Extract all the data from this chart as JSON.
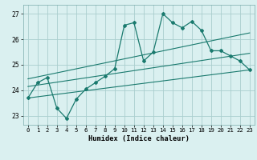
{
  "xlabel": "Humidex (Indice chaleur)",
  "bg_color": "#daf0f0",
  "grid_color": "#aacece",
  "line_color": "#1a7a6e",
  "xlim": [
    -0.5,
    23.5
  ],
  "ylim": [
    22.65,
    27.35
  ],
  "xticks": [
    0,
    1,
    2,
    3,
    4,
    5,
    6,
    7,
    8,
    9,
    10,
    11,
    12,
    13,
    14,
    15,
    16,
    17,
    18,
    19,
    20,
    21,
    22,
    23
  ],
  "yticks": [
    23,
    24,
    25,
    26,
    27
  ],
  "line_bottom": {
    "x": [
      0,
      23
    ],
    "y": [
      23.7,
      24.8
    ]
  },
  "line_mid": {
    "x": [
      0,
      23
    ],
    "y": [
      24.15,
      25.45
    ]
  },
  "line_top": {
    "x": [
      0,
      23
    ],
    "y": [
      24.45,
      26.25
    ]
  },
  "x_main": [
    0,
    1,
    2,
    3,
    4,
    5,
    6,
    7,
    8,
    9,
    10,
    11,
    12,
    13,
    14,
    15,
    16,
    17,
    18,
    19,
    20,
    21,
    22,
    23
  ],
  "y_main": [
    23.7,
    24.3,
    24.5,
    23.3,
    22.9,
    23.65,
    24.05,
    24.3,
    24.55,
    24.85,
    26.55,
    26.65,
    25.15,
    25.5,
    27.0,
    26.65,
    26.45,
    26.7,
    26.35,
    25.55,
    25.55,
    25.35,
    25.15,
    24.8
  ]
}
